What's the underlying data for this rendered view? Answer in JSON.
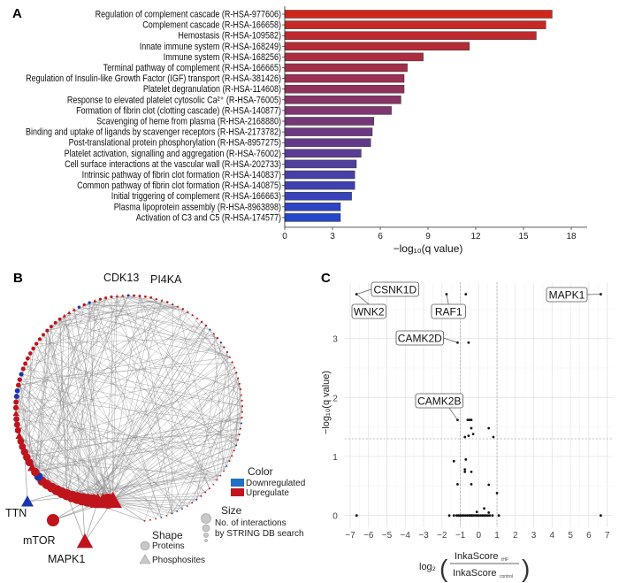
{
  "panels": {
    "a": "A",
    "b": "B",
    "c": "C"
  },
  "chart_data": [
    {
      "type": "bar",
      "orientation": "horizontal",
      "categories": [
        "Regulation of complement cascade (R-HSA-977606)",
        "Complement cascade (R-HSA-166658)",
        "Hemostasis (R-HSA-109582)",
        "Innate immune system (R-HSA-168249)",
        "Immune system (R-HSA-168256)",
        "Terminal pathway of complement (R-HSA-166665)",
        "Regulation of Insulin-like Growth Factor (IGF) transport (R-HSA-381426)",
        "Platelet degranulation  (R-HSA-114608)",
        "Response to elevated platelet cytosolic Ca²⁺ (R-HSA-76005)",
        "Formation of fibrin clot (clotting cascade)  (R-HSA-140877)",
        "Scavenging of heme from plasma (R-HSA-2168880)",
        "Binding and uptake of ligands by scavenger receptors (R-HSA-2173782)",
        "Post-translational protein phosphorylation (R-HSA-8957275)",
        "Platelet activation, signalling and aggregation (R-HSA-76002)",
        "Cell surface interactions at the vascular wall (R-HSA-202733)",
        "Intrinsic pathway of fibrin clot formation (R-HSA-140837)",
        "Common pathway of fibrin clot formation (R-HSA-140875)",
        "Initial triggering of complement (R-HSA-166663)",
        "Plasma lipoprotein assembly (R-HSA-8963898)",
        "Activation of C3 and C5 (R-HSA-174577)"
      ],
      "values": [
        16.8,
        16.4,
        15.8,
        11.6,
        8.7,
        7.7,
        7.5,
        7.5,
        7.3,
        6.7,
        5.6,
        5.5,
        5.4,
        4.8,
        4.5,
        4.4,
        4.4,
        4.2,
        3.5,
        3.5
      ],
      "xlabel": "−log₁₀(q value)",
      "xticks": [
        "0",
        "3",
        "6",
        "9",
        "12",
        "15",
        "18"
      ],
      "xlim": [
        0,
        19
      ],
      "color_gradient": [
        "#d0261a",
        "#2446cc"
      ]
    },
    {
      "type": "network",
      "node_labels": [
        "CDK13",
        "PI4KA",
        "TTN",
        "mTOR",
        "MAPK1"
      ],
      "legend": {
        "color_title": "Color",
        "color_items": [
          {
            "label": "Downregulated",
            "color": "#1f6fc4"
          },
          {
            "label": "Upregulate",
            "color": "#c0141c"
          }
        ],
        "size_title": "Size",
        "size_text_1": "No. of interactions",
        "size_text_2": "by STRING DB search",
        "shape_title": "Shape",
        "shape_items": [
          "Proteins",
          "Phosphosites"
        ]
      },
      "colors": {
        "up": "#c0141c",
        "down": "#1a36a8",
        "edge": "#8a8a8a"
      }
    },
    {
      "type": "scatter",
      "ylabel": "−log₁₀(q value)",
      "xlabel_prefix": "log₂",
      "xlabel_numerator": "InkaScore",
      "xlabel_numerator_sub": "tHF",
      "xlabel_denominator": "InkaScore",
      "xlabel_denominator_sub": "control",
      "xlim": [
        -7.3,
        7.3
      ],
      "ylim": [
        -0.2,
        3.95
      ],
      "xticks": [
        "−7",
        "−6",
        "−5",
        "−4",
        "−3",
        "−2",
        "−1",
        "0",
        "1",
        "2",
        "3",
        "4",
        "5",
        "6",
        "7"
      ],
      "yticks": [
        "0",
        "1",
        "2",
        "3"
      ],
      "thresholds": {
        "x": [
          -1,
          1
        ],
        "y": 1.3
      },
      "grid": true,
      "points": [
        [
          -6.65,
          3.75
        ],
        [
          -1.75,
          3.75
        ],
        [
          -0.7,
          3.75
        ],
        [
          6.65,
          3.75
        ],
        [
          -1.15,
          2.93
        ],
        [
          -0.55,
          2.93
        ],
        [
          -1.15,
          1.62
        ],
        [
          -0.6,
          1.62
        ],
        [
          -0.5,
          1.62
        ],
        [
          -0.4,
          1.62
        ],
        [
          0.55,
          1.48
        ],
        [
          -0.4,
          1.48
        ],
        [
          -0.75,
          1.33
        ],
        [
          -0.55,
          1.35
        ],
        [
          -0.3,
          1.38
        ],
        [
          0.8,
          1.33
        ],
        [
          -1.35,
          0.92
        ],
        [
          -0.7,
          0.95
        ],
        [
          -0.75,
          0.78
        ],
        [
          -0.75,
          0.74
        ],
        [
          -0.4,
          0.74
        ],
        [
          -1.15,
          0.53
        ],
        [
          -0.4,
          0.53
        ],
        [
          0.55,
          0.52
        ],
        [
          1.0,
          0.38
        ],
        [
          -0.1,
          0.06
        ],
        [
          0.3,
          0.12
        ],
        [
          0.55,
          0.05
        ],
        [
          -6.65,
          0
        ],
        [
          6.65,
          0
        ],
        [
          -1.6,
          0
        ],
        [
          -1.35,
          0
        ],
        [
          -1.2,
          0
        ],
        [
          -1.1,
          0
        ],
        [
          -1.0,
          0
        ],
        [
          -0.9,
          0
        ],
        [
          -0.8,
          0
        ],
        [
          -0.7,
          0
        ],
        [
          -0.6,
          0
        ],
        [
          -0.5,
          0
        ],
        [
          -0.45,
          0
        ],
        [
          -0.4,
          0
        ],
        [
          -0.35,
          0
        ],
        [
          -0.3,
          0
        ],
        [
          -0.2,
          0
        ],
        [
          -0.1,
          0
        ],
        [
          0.0,
          0
        ],
        [
          0.1,
          0
        ],
        [
          0.2,
          0
        ],
        [
          0.3,
          0
        ],
        [
          0.4,
          0
        ],
        [
          0.5,
          0
        ],
        [
          0.6,
          0
        ],
        [
          0.75,
          0
        ],
        [
          1.1,
          0
        ]
      ],
      "annotations": [
        {
          "label": "CSNK1D",
          "x": -6.65,
          "y": 3.75
        },
        {
          "label": "WNK2",
          "x": -6.65,
          "y": 3.75
        },
        {
          "label": "RAF1",
          "x": -1.75,
          "y": 3.75
        },
        {
          "label": "CAMK2D",
          "x": -1.15,
          "y": 2.93
        },
        {
          "label": "CAMK2B",
          "x": -1.15,
          "y": 1.62
        },
        {
          "label": "MAPK1",
          "x": 6.65,
          "y": 3.75
        }
      ]
    }
  ]
}
